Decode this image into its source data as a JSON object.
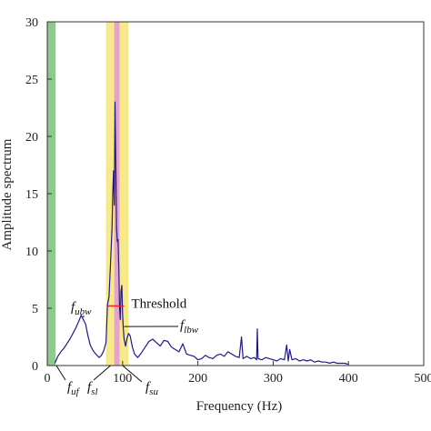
{
  "chart_data": {
    "type": "line",
    "title": "",
    "xlabel": "Frequency (Hz)",
    "ylabel": "Amplitude spectrum",
    "xlim": [
      0,
      500
    ],
    "ylim": [
      0,
      30
    ],
    "x_ticks": [
      "0",
      "100",
      "200",
      "300",
      "400",
      "500"
    ],
    "y_ticks": [
      "0",
      "5",
      "10",
      "15",
      "20",
      "25",
      "30"
    ],
    "grid": false,
    "colors": {
      "line": "#1f1a8c",
      "threshold": "#e0262b",
      "band_low": "#8ec98e",
      "band_side": "#f7e98a",
      "band_center": "#e6a3c8"
    },
    "bands": [
      {
        "name": "low-frequency band",
        "x_start": 0,
        "x_end": 11,
        "color": "#8ec98e"
      },
      {
        "name": "side band",
        "x_start": 78,
        "x_end": 108,
        "color": "#f7e98a"
      },
      {
        "name": "center band",
        "x_start": 89,
        "x_end": 96,
        "color": "#e6a3c8"
      }
    ],
    "threshold": {
      "label": "Threshold",
      "value": 5.2,
      "x_start": 80,
      "x_end": 102
    },
    "annotations": [
      {
        "text": "f",
        "sub": "ubw",
        "target_x": 48,
        "target_y": 4.2
      },
      {
        "text": "f",
        "sub": "lbw",
        "target_x": 102,
        "target_y": 3.4
      },
      {
        "text": "f",
        "sub": "uf",
        "target_x": 12,
        "target_y": 0
      },
      {
        "text": "f",
        "sub": "sl",
        "target_x": 84,
        "target_y": 0
      },
      {
        "text": "f",
        "sub": "su",
        "target_x": 100,
        "target_y": 0
      }
    ],
    "series": [
      {
        "x": [
          10,
          14,
          18,
          22,
          26,
          30,
          34,
          38,
          42,
          45,
          48,
          51,
          54,
          57,
          60,
          63,
          66,
          69,
          72,
          75,
          78,
          80,
          82,
          84,
          86,
          87,
          88,
          89,
          90,
          91,
          92,
          93,
          94,
          95,
          96,
          97,
          98,
          99,
          100,
          101,
          102,
          104,
          106,
          108,
          110,
          113,
          116,
          120,
          125,
          130,
          135,
          140,
          145,
          150,
          155,
          160,
          165,
          170,
          175,
          180,
          185,
          190,
          195,
          200,
          205,
          210,
          215,
          220,
          225,
          230,
          235,
          240,
          245,
          250,
          255,
          258,
          260,
          265,
          270,
          275,
          278,
          279,
          280,
          285,
          290,
          295,
          300,
          305,
          310,
          315,
          318,
          320,
          322,
          325,
          330,
          335,
          340,
          345,
          350,
          355,
          360,
          365,
          370,
          375,
          380,
          385,
          390,
          395,
          400
        ],
        "y": [
          0.2,
          0.8,
          1.2,
          1.5,
          1.9,
          2.3,
          2.8,
          3.3,
          3.9,
          4.4,
          4.0,
          3.6,
          2.6,
          1.8,
          1.4,
          1.1,
          0.9,
          0.7,
          0.9,
          1.3,
          2.0,
          5.3,
          6.0,
          9.0,
          12.0,
          15.0,
          17.0,
          14.0,
          23.0,
          18.0,
          12.0,
          10.8,
          11.0,
          8.5,
          5.0,
          4.0,
          6.5,
          7.0,
          4.5,
          3.2,
          2.3,
          1.7,
          2.4,
          2.8,
          2.6,
          1.6,
          1.0,
          0.7,
          1.1,
          1.6,
          2.1,
          2.3,
          2.0,
          1.7,
          2.2,
          2.1,
          1.6,
          1.4,
          1.2,
          1.9,
          1.0,
          0.9,
          0.8,
          0.5,
          0.6,
          0.9,
          0.7,
          0.6,
          0.9,
          1.0,
          0.8,
          1.2,
          1.0,
          0.8,
          0.7,
          2.5,
          0.6,
          0.8,
          0.6,
          0.7,
          0.5,
          3.2,
          0.6,
          0.5,
          0.7,
          0.6,
          0.5,
          0.4,
          0.6,
          0.5,
          1.8,
          0.4,
          1.4,
          0.5,
          0.6,
          0.4,
          0.5,
          0.4,
          0.5,
          0.3,
          0.4,
          0.3,
          0.3,
          0.2,
          0.3,
          0.2,
          0.2,
          0.2,
          0.1
        ]
      }
    ]
  }
}
